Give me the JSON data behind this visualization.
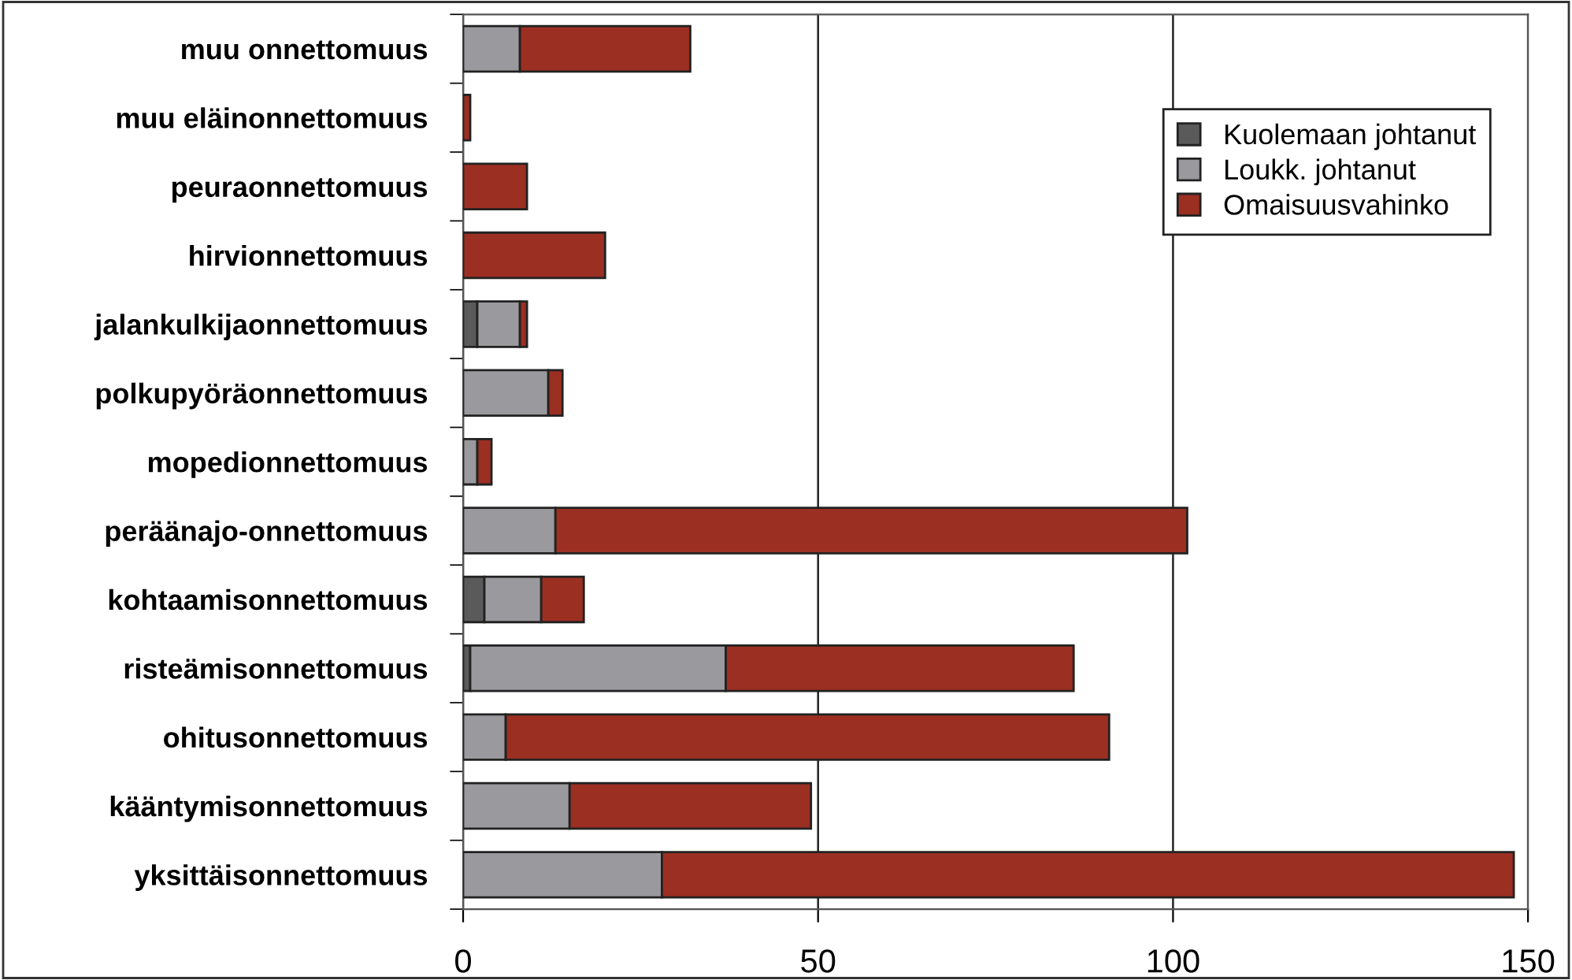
{
  "chart_data": {
    "type": "bar",
    "orientation": "horizontal",
    "stacked": true,
    "categories": [
      "muu onnettomuus",
      "muu eläinonnettomuus",
      "peuraonnettomuus",
      "hirvionnettomuus",
      "jalankulkijaonnettomuus",
      "polkupyöräonnettomuus",
      "mopedionnettomuus",
      "peräänajo-onnettomuus",
      "kohtaamisonnettomuus",
      "risteämisonnettomuus",
      "ohitusonnettomuus",
      "kääntymisonnettomuus",
      "yksittäisonnettomuus"
    ],
    "series": [
      {
        "name": "Kuolemaan johtanut",
        "color": "#5a5a5a",
        "values": [
          0,
          0,
          0,
          0,
          2,
          0,
          0,
          0,
          3,
          1,
          0,
          0,
          0
        ]
      },
      {
        "name": "Loukk. johtanut",
        "color": "#9a9a9e",
        "values": [
          8,
          0,
          0,
          0,
          6,
          12,
          2,
          13,
          8,
          36,
          6,
          15,
          28
        ]
      },
      {
        "name": "Omaisuusvahinko",
        "color": "#9b2f22",
        "values": [
          24,
          1,
          9,
          20,
          1,
          2,
          2,
          89,
          6,
          49,
          85,
          34,
          120
        ]
      }
    ],
    "xlim": [
      0,
      150
    ],
    "xticks": [
      0,
      50,
      100,
      150
    ],
    "grid": "x",
    "legend": "top right"
  }
}
